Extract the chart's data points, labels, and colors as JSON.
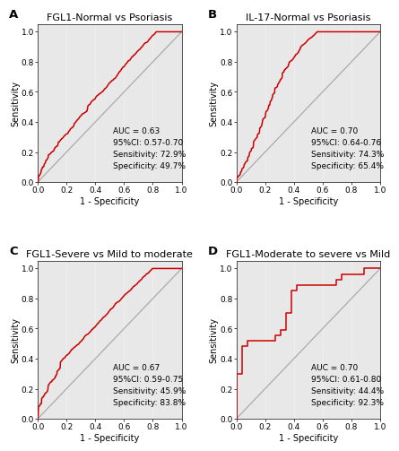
{
  "panels": [
    {
      "label": "A",
      "title": "FGL1-Normal vs Psoriasis",
      "auc": "AUC = 0.63",
      "ci": "95%CI: 0.57-0.70",
      "sensitivity": "Sensitivity: 72.9%",
      "specificity": "Specificity: 49.7%"
    },
    {
      "label": "B",
      "title": "IL-17-Normal vs Psoriasis",
      "auc": "AUC = 0.70",
      "ci": "95%CI: 0.64-0.76",
      "sensitivity": "Sensitivity: 74.3%",
      "specificity": "Specificity: 65.4%"
    },
    {
      "label": "C",
      "title": "FGL1-Severe vs Mild to moderate",
      "auc": "AUC = 0.67",
      "ci": "95%CI: 0.59-0.75",
      "sensitivity": "Sensitivity: 45.9%",
      "specificity": "Specificity: 83.8%"
    },
    {
      "label": "D",
      "title": "FGL1-Moderate to severe vs Mild",
      "auc": "AUC = 0.70",
      "ci": "95%CI: 0.61-0.80",
      "sensitivity": "Sensitivity: 44.4%",
      "specificity": "Specificity: 92.3%"
    }
  ],
  "roc_color": "#cc0000",
  "diag_color": "#aaaaaa",
  "bg_color": "#ffffff",
  "plot_bg": "#e8e8e8",
  "grid_color": "#ffffff",
  "text_color": "#000000",
  "font_size": 7.0,
  "title_font_size": 8.0,
  "label_font_size": 9.5,
  "tick_font_size": 6.5
}
